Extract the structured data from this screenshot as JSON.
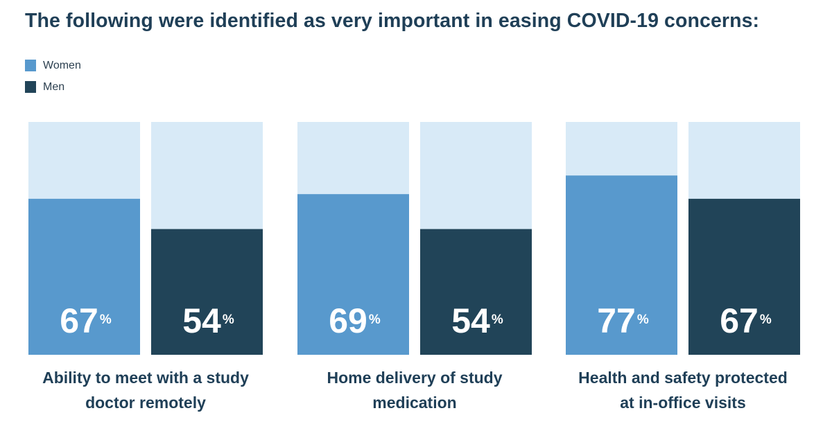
{
  "chart_data": {
    "type": "bar",
    "title": "The following were identified as very important in easing COVID-19 concerns:",
    "xlabel": "",
    "ylabel": "",
    "ylim": [
      0,
      100
    ],
    "grid": false,
    "legend_position": "top-left",
    "value_suffix": "%",
    "categories": [
      "Ability to meet with a study doctor remotely",
      "Home delivery of study medication",
      "Health and safety protected at in-office visits"
    ],
    "category_lines": [
      [
        "Ability to meet with a study",
        "doctor remotely"
      ],
      [
        "Home delivery of study",
        "medication"
      ],
      [
        "Health and safety protected",
        "at in-office visits"
      ]
    ],
    "series": [
      {
        "name": "Women",
        "color": "#5899cd",
        "values": [
          67,
          69,
          77
        ]
      },
      {
        "name": "Men",
        "color": "#214458",
        "values": [
          54,
          54,
          67
        ]
      }
    ],
    "background_color": "#d8eaf7"
  }
}
